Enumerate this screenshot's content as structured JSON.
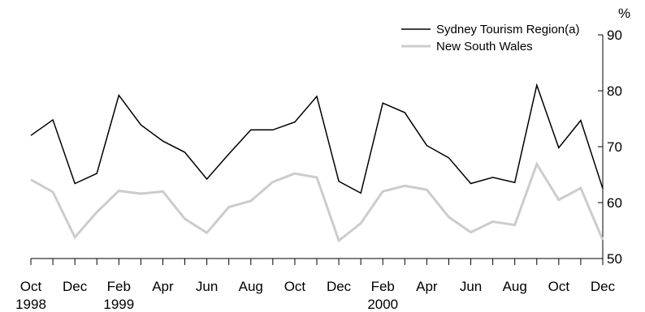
{
  "chart_data": {
    "type": "line",
    "x": [
      "Oct 1998",
      "Nov 1998",
      "Dec 1998",
      "Jan 1999",
      "Feb 1999",
      "Mar 1999",
      "Apr 1999",
      "May 1999",
      "Jun 1999",
      "Jul 1999",
      "Aug 1999",
      "Sep 1999",
      "Oct 1999",
      "Nov 1999",
      "Dec 1999",
      "Jan 2000",
      "Feb 2000",
      "Mar 2000",
      "Apr 2000",
      "May 2000",
      "Jun 2000",
      "Jul 2000",
      "Aug 2000",
      "Sep 2000",
      "Oct 2000",
      "Nov 2000",
      "Dec 2000"
    ],
    "x_tick_labels": [
      {
        "index": 0,
        "month": "Oct",
        "year": "1998"
      },
      {
        "index": 2,
        "month": "Dec",
        "year": ""
      },
      {
        "index": 4,
        "month": "Feb",
        "year": "1999"
      },
      {
        "index": 6,
        "month": "Apr",
        "year": ""
      },
      {
        "index": 8,
        "month": "Jun",
        "year": ""
      },
      {
        "index": 10,
        "month": "Aug",
        "year": ""
      },
      {
        "index": 12,
        "month": "Oct",
        "year": ""
      },
      {
        "index": 14,
        "month": "Dec",
        "year": ""
      },
      {
        "index": 16,
        "month": "Feb",
        "year": "2000"
      },
      {
        "index": 18,
        "month": "Apr",
        "year": ""
      },
      {
        "index": 20,
        "month": "Jun",
        "year": ""
      },
      {
        "index": 22,
        "month": "Aug",
        "year": ""
      },
      {
        "index": 24,
        "month": "Oct",
        "year": ""
      },
      {
        "index": 26,
        "month": "Dec",
        "year": ""
      }
    ],
    "series": [
      {
        "name": "Sydney Tourism Region(a)",
        "color": "#000000",
        "values": [
          72.0,
          74.8,
          63.4,
          65.2,
          79.2,
          73.9,
          71.0,
          69.0,
          64.2,
          68.7,
          73.0,
          73.0,
          74.4,
          79.0,
          63.8,
          61.7,
          77.8,
          76.1,
          70.2,
          68.0,
          63.4,
          64.5,
          63.6,
          81.0,
          69.8,
          74.7,
          62.5
        ]
      },
      {
        "name": "New South Wales",
        "color": "#cccccc",
        "values": [
          64.1,
          61.9,
          53.8,
          58.3,
          62.1,
          61.6,
          62.0,
          57.1,
          54.6,
          59.2,
          60.3,
          63.7,
          65.2,
          64.5,
          53.2,
          56.3,
          62.0,
          63.0,
          62.3,
          57.4,
          54.7,
          56.6,
          56.0,
          66.9,
          60.5,
          62.6,
          53.3
        ]
      }
    ],
    "y_axis": {
      "unit": "%",
      "ylim": [
        50,
        90
      ],
      "ticks": [
        50,
        60,
        70,
        80,
        90
      ],
      "position": "right"
    },
    "legend_position": "top-right",
    "grid": false
  }
}
